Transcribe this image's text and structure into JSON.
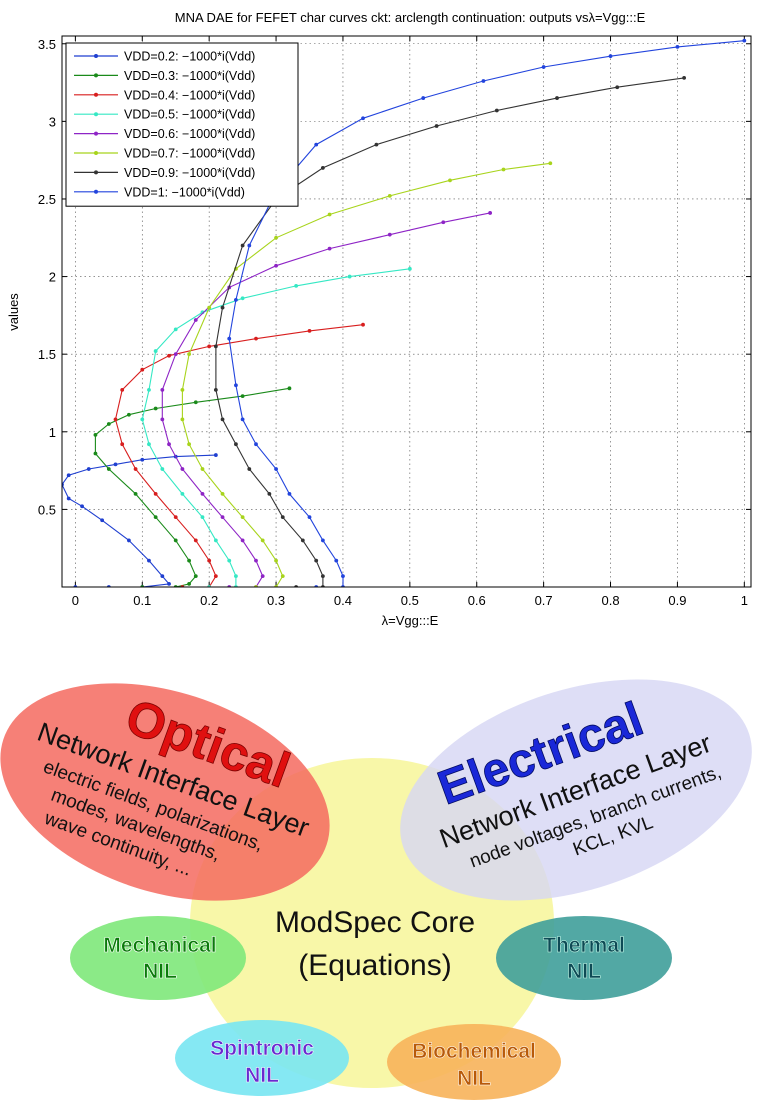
{
  "chart_data": {
    "type": "line",
    "title": "MNA DAE for FEFET char curves ckt: arclength continuation: outputs vsλ=Vgg:::E",
    "xlabel": "λ=Vgg:::E",
    "ylabel": "values",
    "xlim": [
      -0.02,
      1.01
    ],
    "ylim": [
      0,
      3.55
    ],
    "xticks": [
      0,
      0.1,
      0.2,
      0.3,
      0.4,
      0.5,
      0.6,
      0.7,
      0.8,
      0.9,
      1
    ],
    "xtick_labels": [
      "0",
      "0.1",
      "0.2",
      "0.3",
      "0.4",
      "0.5",
      "0.6",
      "0.7",
      "0.8",
      "0.9",
      "1"
    ],
    "yticks": [
      0.5,
      1,
      1.5,
      2,
      2.5,
      3,
      3.5
    ],
    "ytick_labels": [
      "0.5",
      "1",
      "1.5",
      "2",
      "2.5",
      "3",
      "3.5"
    ],
    "grid": true,
    "legend_position": "top-left",
    "series": [
      {
        "name": "VDD=0.2: −1000*i(Vdd)",
        "color": "#1f3fd0",
        "x": [
          0.0,
          0.05,
          0.1,
          0.14,
          0.13,
          0.11,
          0.08,
          0.04,
          0.01,
          -0.01,
          -0.02,
          -0.01,
          0.02,
          0.06,
          0.1,
          0.15,
          0.21
        ],
        "y": [
          0.0,
          0.0,
          0.0,
          0.02,
          0.07,
          0.17,
          0.3,
          0.43,
          0.52,
          0.57,
          0.66,
          0.72,
          0.76,
          0.79,
          0.82,
          0.84,
          0.85
        ]
      },
      {
        "name": "VDD=0.3: −1000*i(Vdd)",
        "color": "#1a8a1a",
        "x": [
          0.1,
          0.15,
          0.17,
          0.18,
          0.17,
          0.15,
          0.12,
          0.09,
          0.05,
          0.03,
          0.03,
          0.05,
          0.08,
          0.12,
          0.18,
          0.25,
          0.32
        ],
        "y": [
          0.0,
          0.0,
          0.02,
          0.07,
          0.17,
          0.3,
          0.45,
          0.6,
          0.76,
          0.86,
          0.98,
          1.05,
          1.11,
          1.15,
          1.19,
          1.23,
          1.28
        ]
      },
      {
        "name": "VDD=0.4: −1000*i(Vdd)",
        "color": "#d81e1e",
        "x": [
          0.16,
          0.2,
          0.21,
          0.2,
          0.18,
          0.15,
          0.12,
          0.09,
          0.07,
          0.06,
          0.07,
          0.1,
          0.14,
          0.2,
          0.27,
          0.35,
          0.43
        ],
        "y": [
          0.0,
          0.0,
          0.07,
          0.17,
          0.3,
          0.45,
          0.6,
          0.76,
          0.92,
          1.08,
          1.27,
          1.4,
          1.49,
          1.55,
          1.6,
          1.65,
          1.69
        ]
      },
      {
        "name": "VDD=0.5: −1000*i(Vdd)",
        "color": "#35e8c4",
        "x": [
          0.2,
          0.24,
          0.24,
          0.23,
          0.21,
          0.19,
          0.16,
          0.13,
          0.11,
          0.1,
          0.11,
          0.12,
          0.15,
          0.19,
          0.25,
          0.33,
          0.41,
          0.5
        ],
        "y": [
          0.0,
          0.0,
          0.07,
          0.17,
          0.3,
          0.45,
          0.6,
          0.76,
          0.92,
          1.08,
          1.27,
          1.52,
          1.66,
          1.77,
          1.86,
          1.94,
          2.0,
          2.05
        ]
      },
      {
        "name": "VDD=0.6: −1000*i(Vdd)",
        "color": "#8e24c6",
        "x": [
          0.23,
          0.27,
          0.28,
          0.27,
          0.25,
          0.22,
          0.19,
          0.16,
          0.14,
          0.13,
          0.13,
          0.15,
          0.18,
          0.23,
          0.3,
          0.38,
          0.47,
          0.55,
          0.62
        ],
        "y": [
          0.0,
          0.0,
          0.07,
          0.17,
          0.3,
          0.45,
          0.6,
          0.76,
          0.92,
          1.08,
          1.27,
          1.5,
          1.72,
          1.93,
          2.07,
          2.18,
          2.27,
          2.35,
          2.41
        ]
      },
      {
        "name": "VDD=0.7: −1000*i(Vdd)",
        "color": "#a8d41c",
        "x": [
          0.27,
          0.3,
          0.31,
          0.3,
          0.28,
          0.25,
          0.22,
          0.19,
          0.17,
          0.16,
          0.16,
          0.17,
          0.2,
          0.24,
          0.3,
          0.38,
          0.47,
          0.56,
          0.64,
          0.71
        ],
        "y": [
          0.0,
          0.0,
          0.07,
          0.17,
          0.3,
          0.45,
          0.6,
          0.76,
          0.92,
          1.08,
          1.27,
          1.5,
          1.8,
          2.05,
          2.25,
          2.4,
          2.52,
          2.62,
          2.69,
          2.73
        ]
      },
      {
        "name": "VDD=0.9: −1000*i(Vdd)",
        "color": "#333333",
        "x": [
          0.33,
          0.37,
          0.37,
          0.36,
          0.34,
          0.31,
          0.29,
          0.26,
          0.24,
          0.22,
          0.21,
          0.21,
          0.22,
          0.25,
          0.3,
          0.37,
          0.45,
          0.54,
          0.63,
          0.72,
          0.81,
          0.91
        ],
        "y": [
          0.0,
          0.0,
          0.07,
          0.17,
          0.3,
          0.45,
          0.6,
          0.76,
          0.92,
          1.08,
          1.27,
          1.55,
          1.8,
          2.2,
          2.5,
          2.7,
          2.85,
          2.97,
          3.07,
          3.15,
          3.22,
          3.28
        ]
      },
      {
        "name": "VDD=1: −1000*i(Vdd)",
        "color": "#2244dd",
        "x": [
          0.36,
          0.4,
          0.4,
          0.39,
          0.37,
          0.35,
          0.32,
          0.3,
          0.27,
          0.25,
          0.24,
          0.23,
          0.24,
          0.26,
          0.3,
          0.36,
          0.43,
          0.52,
          0.61,
          0.7,
          0.8,
          0.9,
          1.0
        ],
        "y": [
          0.0,
          0.0,
          0.07,
          0.17,
          0.3,
          0.45,
          0.6,
          0.76,
          0.92,
          1.08,
          1.3,
          1.6,
          1.85,
          2.2,
          2.55,
          2.85,
          3.02,
          3.15,
          3.26,
          3.35,
          3.42,
          3.48,
          3.52
        ]
      }
    ]
  },
  "diagram": {
    "core": {
      "line1": "ModSpec Core",
      "line2": "(Equations)"
    },
    "optical": {
      "title": "Optical",
      "subtitle": "Network Interface Layer",
      "lines": [
        "electric fields, polarizations,",
        "modes, wavelengths,",
        "wave continuity, ..."
      ]
    },
    "electrical": {
      "title": "Electrical",
      "subtitle": "Network Interface Layer",
      "lines": [
        "node voltages, branch currents,",
        "KCL, KVL"
      ]
    },
    "mechanical": {
      "line1": "Mechanical",
      "line2": "NIL"
    },
    "thermal": {
      "line1": "Thermal",
      "line2": "NIL"
    },
    "spintronic": {
      "line1": "Spintronic",
      "line2": "NIL"
    },
    "biochemical": {
      "line1": "Biochemical",
      "line2": "NIL"
    },
    "colors": {
      "core": "#f8f7a8",
      "optical": "#f56a5f",
      "optical_title": "#e01010",
      "electrical": "#d6d6f4",
      "electrical_title": "#1a28d8",
      "mechanical": "#7ee87a",
      "mechanical_text": "#0b7a0b",
      "thermal": "#3f9f9a",
      "thermal_text": "#0e4a55",
      "spintronic": "#78e6f2",
      "spintronic_text": "#6a2ad0",
      "biochemical": "#f7b25a",
      "biochemical_text": "#b85a0a"
    }
  }
}
